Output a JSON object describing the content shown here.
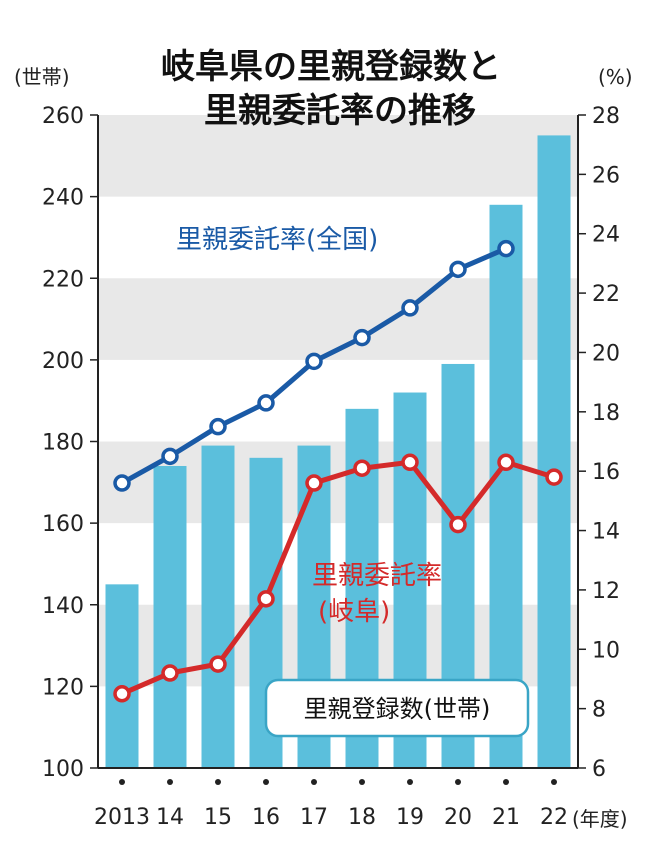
{
  "chart_data": {
    "type": "bar",
    "title": [
      "岐阜県の里親登録数と",
      "里親委託率の推移"
    ],
    "left_axis": {
      "unit": "(世帯)",
      "min": 100,
      "max": 260,
      "ticks": [
        100,
        120,
        140,
        160,
        180,
        200,
        220,
        240,
        260
      ]
    },
    "right_axis": {
      "unit": "(%)",
      "min": 6,
      "max": 28,
      "ticks": [
        6,
        8,
        10,
        12,
        14,
        16,
        18,
        20,
        22,
        24,
        26,
        28
      ]
    },
    "x_unit": "(年度)",
    "categories": [
      "2013",
      "14",
      "15",
      "16",
      "17",
      "18",
      "19",
      "20",
      "21",
      "22"
    ],
    "series": [
      {
        "name": "里親登録数(世帯)",
        "type": "bar",
        "axis": "left",
        "color": "#5bbfdc",
        "values": [
          145,
          174,
          179,
          176,
          179,
          188,
          192,
          199,
          238,
          255
        ]
      },
      {
        "name": "里親委託率(全国)",
        "type": "line",
        "axis": "right",
        "color": "#1a5aa6",
        "values": [
          15.6,
          16.5,
          17.5,
          18.3,
          19.7,
          20.5,
          21.5,
          22.8,
          23.5,
          null
        ]
      },
      {
        "name": "里親委託率(岐阜)",
        "type": "line",
        "axis": "right",
        "color": "#d42a2a",
        "values": [
          8.5,
          9.2,
          9.5,
          11.7,
          15.6,
          16.1,
          16.3,
          14.2,
          16.3,
          15.8
        ]
      }
    ],
    "labels": {
      "national": "里親委託率(全国)",
      "gifu_line1": "里親委託率",
      "gifu_line2": "(岐阜)",
      "bars": "里親登録数(世帯)"
    }
  }
}
